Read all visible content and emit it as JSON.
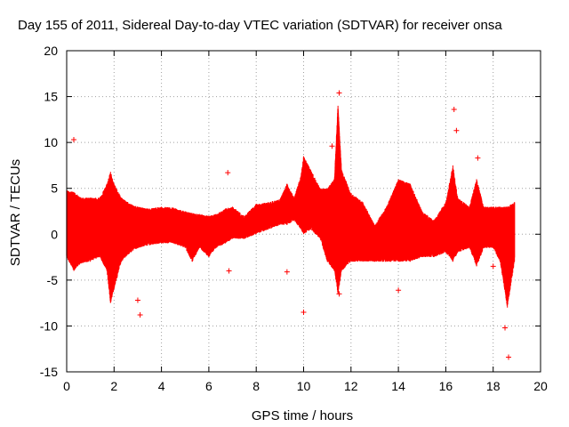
{
  "chart_data": {
    "type": "scatter",
    "title": "Day 155 of 2011, Sidereal Day-to-day VTEC variation (SDTVAR) for receiver onsa",
    "xlabel": "GPS time / hours",
    "ylabel": "SDTVAR / TECUs",
    "xlim": [
      0,
      20
    ],
    "ylim": [
      -15,
      20
    ],
    "xticks": [
      0,
      2,
      4,
      6,
      8,
      10,
      12,
      14,
      16,
      18,
      20
    ],
    "yticks": [
      -15,
      -10,
      -5,
      0,
      5,
      10,
      15,
      20
    ],
    "grid": true,
    "marker": "+",
    "series": [
      {
        "name": "SDTVAR",
        "color": "#ff0000",
        "envelope": [
          [
            0.0,
            -2.5,
            4.8
          ],
          [
            0.3,
            -4.0,
            4.6
          ],
          [
            0.6,
            -3.2,
            4.0
          ],
          [
            1.0,
            -3.0,
            4.0
          ],
          [
            1.4,
            -2.5,
            4.0
          ],
          [
            1.7,
            -4.0,
            5.5
          ],
          [
            1.85,
            -7.5,
            6.8
          ],
          [
            2.0,
            -6.0,
            5.5
          ],
          [
            2.3,
            -3.0,
            4.0
          ],
          [
            2.7,
            -2.0,
            3.3
          ],
          [
            3.0,
            -1.5,
            3.0
          ],
          [
            3.5,
            -1.2,
            2.8
          ],
          [
            4.0,
            -1.0,
            3.0
          ],
          [
            4.5,
            -1.0,
            2.9
          ],
          [
            5.0,
            -1.5,
            2.5
          ],
          [
            5.3,
            -3.0,
            2.3
          ],
          [
            5.6,
            -1.5,
            2.2
          ],
          [
            6.0,
            -2.5,
            2.0
          ],
          [
            6.3,
            -1.5,
            2.2
          ],
          [
            6.7,
            -1.0,
            2.8
          ],
          [
            7.0,
            -0.5,
            3.0
          ],
          [
            7.5,
            -0.5,
            2.0
          ],
          [
            8.0,
            0.0,
            3.3
          ],
          [
            8.5,
            0.5,
            3.5
          ],
          [
            9.0,
            1.0,
            3.8
          ],
          [
            9.3,
            1.0,
            5.5
          ],
          [
            9.6,
            1.5,
            4.0
          ],
          [
            9.9,
            0.5,
            6.5
          ],
          [
            10.0,
            0.0,
            8.5
          ],
          [
            10.3,
            0.5,
            7.0
          ],
          [
            10.7,
            -0.5,
            5.0
          ],
          [
            11.0,
            -3.0,
            5.0
          ],
          [
            11.3,
            -4.0,
            6.0
          ],
          [
            11.45,
            -6.5,
            14.0
          ],
          [
            11.6,
            -4.0,
            7.0
          ],
          [
            12.0,
            -3.0,
            4.5
          ],
          [
            12.5,
            -3.0,
            3.5
          ],
          [
            13.0,
            -3.0,
            1.0
          ],
          [
            13.5,
            -3.0,
            3.0
          ],
          [
            14.0,
            -3.0,
            6.0
          ],
          [
            14.5,
            -3.0,
            5.5
          ],
          [
            15.0,
            -2.5,
            2.5
          ],
          [
            15.5,
            -2.5,
            1.5
          ],
          [
            16.0,
            -2.0,
            3.5
          ],
          [
            16.3,
            -3.0,
            7.5
          ],
          [
            16.5,
            -2.0,
            4.0
          ],
          [
            17.0,
            -1.5,
            3.0
          ],
          [
            17.3,
            -3.5,
            6.0
          ],
          [
            17.6,
            -1.5,
            3.0
          ],
          [
            18.0,
            -1.5,
            3.0
          ],
          [
            18.3,
            -3.0,
            3.0
          ],
          [
            18.6,
            -8.0,
            3.0
          ],
          [
            18.9,
            -3.0,
            3.5
          ]
        ],
        "outliers": [
          [
            0.3,
            10.3
          ],
          [
            3.0,
            -7.2
          ],
          [
            3.1,
            -8.8
          ],
          [
            6.8,
            6.7
          ],
          [
            6.85,
            -4.0
          ],
          [
            9.3,
            -4.1
          ],
          [
            10.0,
            -8.5
          ],
          [
            11.2,
            9.6
          ],
          [
            11.5,
            15.4
          ],
          [
            11.5,
            -6.5
          ],
          [
            16.35,
            13.6
          ],
          [
            16.45,
            11.3
          ],
          [
            14.0,
            -6.1
          ],
          [
            17.35,
            8.3
          ],
          [
            18.65,
            -13.4
          ],
          [
            18.5,
            -10.2
          ],
          [
            18.0,
            -3.5
          ]
        ]
      }
    ]
  }
}
